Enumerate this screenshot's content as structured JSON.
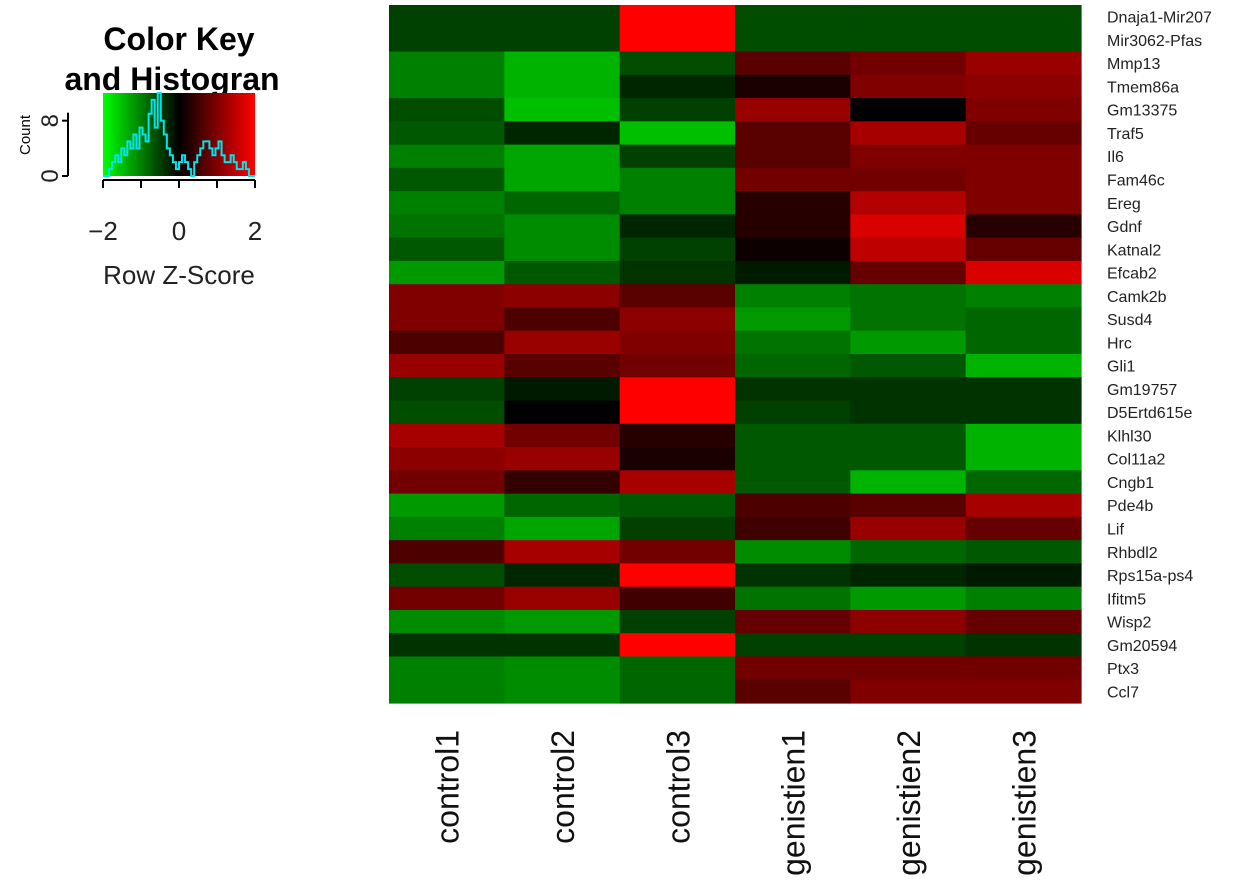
{
  "chart_data": {
    "type": "heatmap",
    "color_key": {
      "title_line1": "Color Key",
      "title_line2": "and Histogran",
      "ylabel": "Count",
      "yticks": [
        "0",
        "8"
      ],
      "xticks": [
        "-2",
        "0",
        "2"
      ],
      "xlabel": "Row Z-Score",
      "range": [
        -2,
        2
      ],
      "low_color": "#00ff00",
      "mid_color": "#000000",
      "high_color": "#ff0000",
      "histogram_color": "#00e5ee",
      "histogram_counts": [
        0,
        0,
        1,
        2,
        3,
        2,
        4,
        3,
        5,
        4,
        6,
        4,
        7,
        6,
        5,
        9,
        11,
        7,
        12,
        8,
        6,
        4,
        3,
        2,
        1,
        2,
        3,
        2,
        1,
        0,
        2,
        3,
        4,
        5,
        5,
        4,
        3,
        4,
        5,
        3,
        2,
        2,
        3,
        2,
        1,
        1,
        2,
        1,
        0,
        0
      ]
    },
    "columns": [
      "control1",
      "control2",
      "control3",
      "genistien1",
      "genistien2",
      "genistien3"
    ],
    "rows": [
      "Dnaja1-Mir207",
      "Mir3062-Pfas",
      "Mmp13",
      "Tmem86a",
      "Gm13375",
      "Traf5",
      "Il6",
      "Fam46c",
      "Ereg",
      "Gdnf",
      "Katnal2",
      "Efcab2",
      "Camk2b",
      "Susd4",
      "Hrc",
      "Gli1",
      "Gm19757",
      "D5Ertd615e",
      "Klhl30",
      "Col11a2",
      "Cngb1",
      "Pde4b",
      "Lif",
      "Rhbdl2",
      "Rps15a-ps4",
      "Ifitm5",
      "Wisp2",
      "Gm20594",
      "Ptx3",
      "Ccl7"
    ],
    "values": [
      [
        -0.5,
        -0.5,
        2.0,
        -0.6,
        -0.6,
        -0.6
      ],
      [
        -0.5,
        -0.5,
        2.0,
        -0.6,
        -0.6,
        -0.6
      ],
      [
        -1.0,
        -1.4,
        -0.6,
        0.7,
        0.9,
        1.2
      ],
      [
        -1.0,
        -1.4,
        -0.3,
        0.2,
        1.0,
        1.1
      ],
      [
        -0.6,
        -1.5,
        -0.5,
        1.2,
        0.0,
        1.0
      ],
      [
        -0.7,
        -0.3,
        -1.5,
        0.7,
        1.3,
        0.8
      ],
      [
        -1.0,
        -1.3,
        -0.5,
        0.7,
        1.0,
        1.0
      ],
      [
        -0.7,
        -1.3,
        -1.0,
        0.9,
        0.9,
        1.0
      ],
      [
        -1.0,
        -0.8,
        -1.0,
        0.3,
        1.4,
        1.0
      ],
      [
        -0.9,
        -1.1,
        -0.3,
        0.3,
        1.7,
        0.3
      ],
      [
        -0.7,
        -1.1,
        -0.5,
        0.1,
        1.5,
        0.8
      ],
      [
        -1.2,
        -0.7,
        -0.4,
        -0.2,
        0.8,
        1.7
      ],
      [
        1.0,
        1.1,
        0.7,
        -1.0,
        -0.9,
        -1.0
      ],
      [
        1.0,
        0.6,
        1.1,
        -1.2,
        -0.9,
        -0.8
      ],
      [
        0.6,
        1.2,
        1.0,
        -0.9,
        -1.2,
        -0.8
      ],
      [
        1.2,
        0.7,
        0.9,
        -0.8,
        -0.7,
        -1.4
      ],
      [
        -0.5,
        -0.2,
        2.0,
        -0.4,
        -0.4,
        -0.4
      ],
      [
        -0.6,
        0.0,
        2.0,
        -0.5,
        -0.4,
        -0.4
      ],
      [
        1.3,
        0.9,
        0.3,
        -0.7,
        -0.7,
        -1.4
      ],
      [
        1.1,
        1.2,
        0.2,
        -0.7,
        -0.7,
        -1.4
      ],
      [
        0.9,
        0.4,
        1.3,
        -0.7,
        -1.4,
        -0.8
      ],
      [
        -1.2,
        -0.8,
        -0.7,
        0.6,
        0.7,
        1.3
      ],
      [
        -1.0,
        -1.3,
        -0.5,
        0.5,
        1.2,
        0.8
      ],
      [
        0.6,
        1.3,
        0.9,
        -1.1,
        -0.8,
        -0.7
      ],
      [
        -0.6,
        -0.3,
        2.0,
        -0.4,
        -0.3,
        -0.2
      ],
      [
        0.9,
        1.2,
        0.5,
        -0.9,
        -1.2,
        -1.0
      ],
      [
        -1.1,
        -1.2,
        -0.5,
        0.8,
        1.1,
        0.8
      ],
      [
        -0.4,
        -0.4,
        2.0,
        -0.5,
        -0.5,
        -0.4
      ],
      [
        -1.0,
        -1.1,
        -0.8,
        0.9,
        0.9,
        0.9
      ],
      [
        -1.0,
        -1.1,
        -0.8,
        0.7,
        1.0,
        1.0
      ]
    ]
  }
}
